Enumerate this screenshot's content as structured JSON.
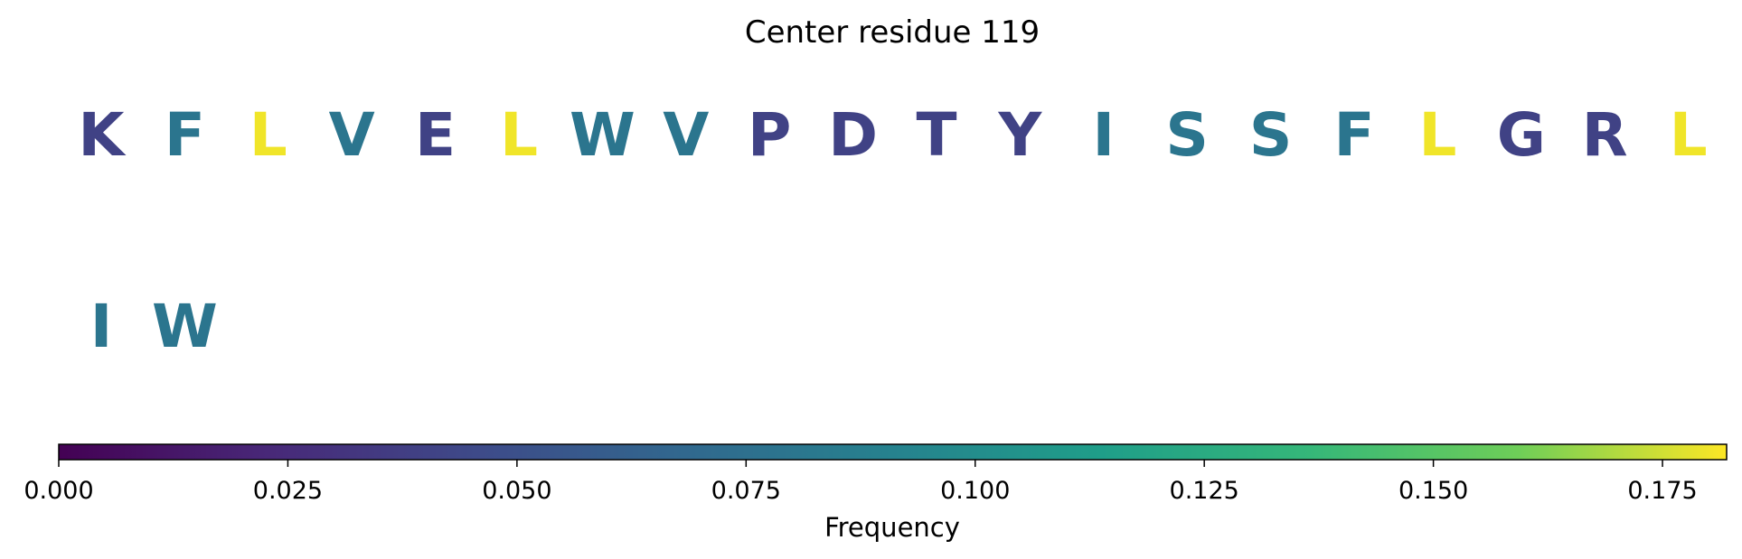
{
  "chart_data": {
    "type": "residue_grid",
    "title": "Center residue 119",
    "rows": [
      [
        {
          "residue": "K",
          "frequency": 0.04
        },
        {
          "residue": "F",
          "frequency": 0.08
        },
        {
          "residue": "L",
          "frequency": 0.18
        },
        {
          "residue": "V",
          "frequency": 0.08
        },
        {
          "residue": "E",
          "frequency": 0.04
        },
        {
          "residue": "L",
          "frequency": 0.18
        },
        {
          "residue": "W",
          "frequency": 0.08
        },
        {
          "residue": "V",
          "frequency": 0.08
        },
        {
          "residue": "P",
          "frequency": 0.04
        },
        {
          "residue": "D",
          "frequency": 0.04
        },
        {
          "residue": "T",
          "frequency": 0.04
        },
        {
          "residue": "Y",
          "frequency": 0.04
        },
        {
          "residue": "I",
          "frequency": 0.08
        },
        {
          "residue": "S",
          "frequency": 0.08
        },
        {
          "residue": "S",
          "frequency": 0.08
        },
        {
          "residue": "F",
          "frequency": 0.08
        },
        {
          "residue": "L",
          "frequency": 0.18
        },
        {
          "residue": "G",
          "frequency": 0.04
        },
        {
          "residue": "R",
          "frequency": 0.04
        },
        {
          "residue": "L",
          "frequency": 0.18
        }
      ],
      [
        {
          "residue": "I",
          "frequency": 0.08
        },
        {
          "residue": "W",
          "frequency": 0.08
        }
      ]
    ],
    "colorbar": {
      "colormap": "viridis",
      "range": [
        0,
        0.182
      ],
      "ticks": [
        0.0,
        0.025,
        0.05,
        0.075,
        0.1,
        0.125,
        0.15,
        0.175
      ],
      "tick_labels": [
        "0.000",
        "0.025",
        "0.050",
        "0.075",
        "0.100",
        "0.125",
        "0.150",
        "0.175"
      ],
      "label": "Frequency",
      "orientation": "horizontal",
      "placement": "bottom"
    }
  }
}
